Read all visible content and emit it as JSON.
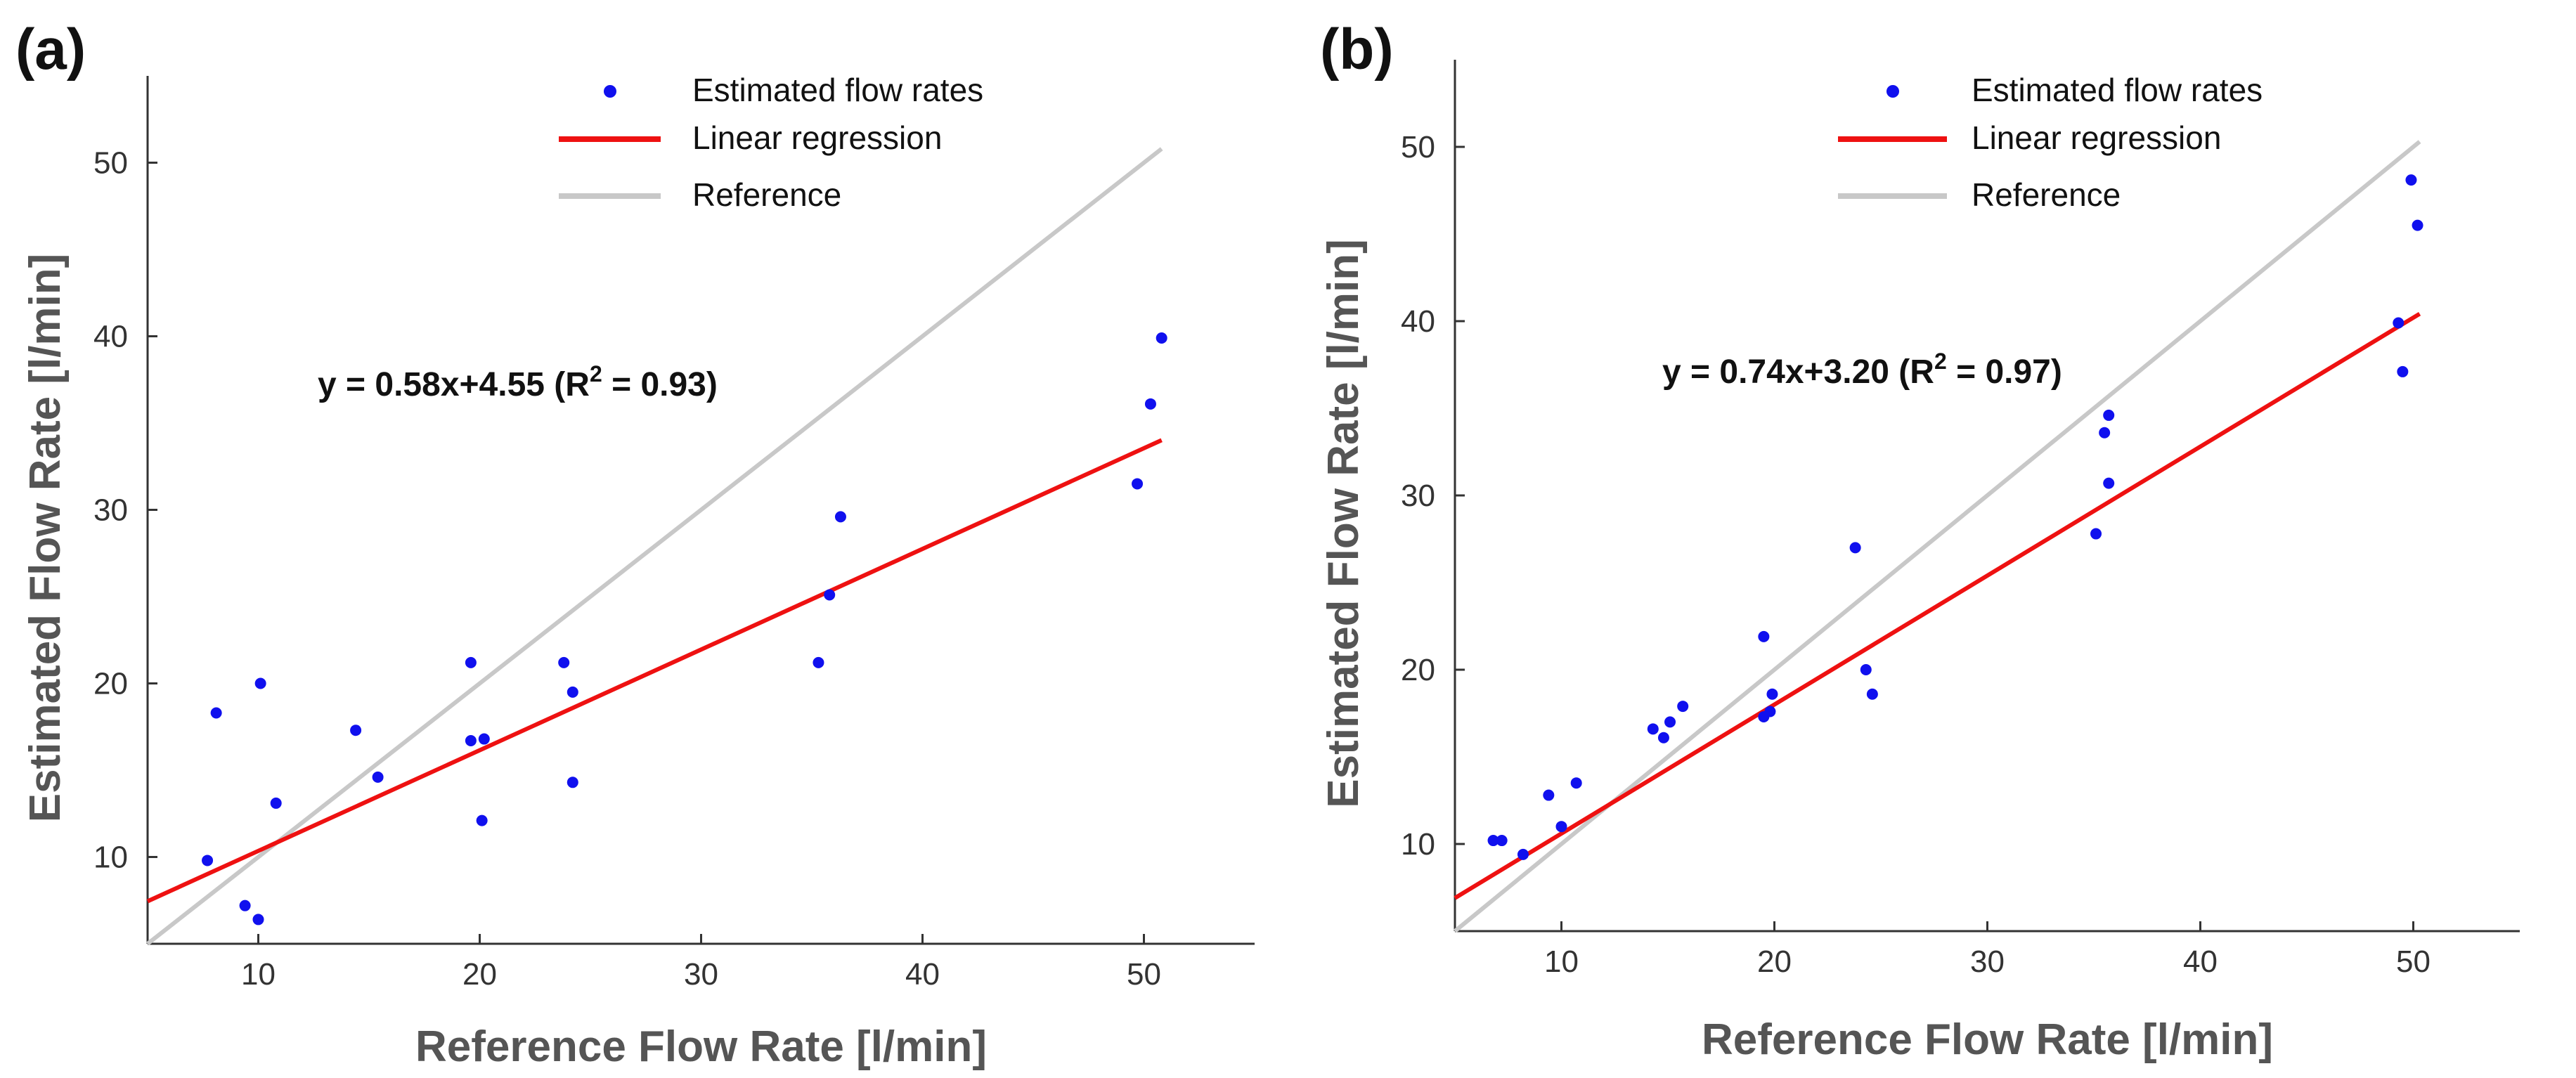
{
  "chart_data": [
    {
      "panel_label": "(a)",
      "type": "scatter",
      "xlabel": "Reference Flow Rate [l/min]",
      "ylabel": "Estimated Flow Rate [l/min]",
      "xlim": [
        5,
        55
      ],
      "ylim": [
        5,
        55
      ],
      "xticks": [
        10,
        20,
        30,
        40,
        50
      ],
      "yticks": [
        10,
        20,
        30,
        40,
        50
      ],
      "equation": {
        "prefix": "y = 0.58x+4.55 (R",
        "sup": "2",
        "suffix": " = 0.93)"
      },
      "legend": {
        "points": "Estimated flow rates",
        "regression": "Linear regression",
        "reference": "Reference"
      },
      "colors": {
        "points": "#1010ee",
        "regression": "#ee1111",
        "reference": "#c8c8c8",
        "axes": "#333333"
      },
      "regression": {
        "slope": 0.58,
        "intercept": 4.55,
        "x_range": [
          5,
          50.8
        ]
      },
      "reference_line": {
        "x_range": [
          5,
          50.8
        ]
      },
      "points": [
        {
          "x": 7.7,
          "y": 9.8
        },
        {
          "x": 8.1,
          "y": 18.3
        },
        {
          "x": 9.4,
          "y": 7.2
        },
        {
          "x": 10.0,
          "y": 6.4
        },
        {
          "x": 10.1,
          "y": 20.0
        },
        {
          "x": 10.8,
          "y": 13.1
        },
        {
          "x": 14.4,
          "y": 17.3
        },
        {
          "x": 15.4,
          "y": 14.6
        },
        {
          "x": 19.6,
          "y": 21.2
        },
        {
          "x": 19.6,
          "y": 16.7
        },
        {
          "x": 20.2,
          "y": 16.8
        },
        {
          "x": 20.1,
          "y": 12.1
        },
        {
          "x": 23.8,
          "y": 21.2
        },
        {
          "x": 24.2,
          "y": 19.5
        },
        {
          "x": 24.2,
          "y": 14.3
        },
        {
          "x": 35.3,
          "y": 21.2
        },
        {
          "x": 35.8,
          "y": 25.1
        },
        {
          "x": 36.3,
          "y": 29.6
        },
        {
          "x": 49.7,
          "y": 31.5
        },
        {
          "x": 50.3,
          "y": 36.1
        },
        {
          "x": 50.8,
          "y": 39.9
        }
      ]
    },
    {
      "panel_label": "(b)",
      "type": "scatter",
      "xlabel": "Reference Flow Rate [l/min]",
      "ylabel": "Estimated Flow Rate [l/min]",
      "xlim": [
        5,
        55
      ],
      "ylim": [
        5,
        55
      ],
      "xticks": [
        10,
        20,
        30,
        40,
        50
      ],
      "yticks": [
        10,
        20,
        30,
        40,
        50
      ],
      "equation": {
        "prefix": "y = 0.74x+3.20 (R",
        "sup": "2",
        "suffix": " = 0.97)"
      },
      "legend": {
        "points": "Estimated flow rates",
        "regression": "Linear regression",
        "reference": "Reference"
      },
      "colors": {
        "points": "#1010ee",
        "regression": "#ee1111",
        "reference": "#c8c8c8",
        "axes": "#333333"
      },
      "regression": {
        "slope": 0.74,
        "intercept": 3.2,
        "x_range": [
          5,
          50.3
        ]
      },
      "reference_line": {
        "x_range": [
          5,
          50.3
        ]
      },
      "points": [
        {
          "x": 6.8,
          "y": 10.2
        },
        {
          "x": 7.2,
          "y": 10.2
        },
        {
          "x": 8.2,
          "y": 9.4
        },
        {
          "x": 9.4,
          "y": 12.8
        },
        {
          "x": 10.0,
          "y": 11.0
        },
        {
          "x": 10.7,
          "y": 13.5
        },
        {
          "x": 14.3,
          "y": 16.6
        },
        {
          "x": 14.8,
          "y": 16.1
        },
        {
          "x": 15.1,
          "y": 17.0
        },
        {
          "x": 15.7,
          "y": 17.9
        },
        {
          "x": 19.5,
          "y": 21.9
        },
        {
          "x": 19.5,
          "y": 17.3
        },
        {
          "x": 19.8,
          "y": 17.6
        },
        {
          "x": 19.9,
          "y": 18.6
        },
        {
          "x": 23.8,
          "y": 27.0
        },
        {
          "x": 24.3,
          "y": 20.0
        },
        {
          "x": 24.6,
          "y": 18.6
        },
        {
          "x": 35.1,
          "y": 27.8
        },
        {
          "x": 35.5,
          "y": 33.6
        },
        {
          "x": 35.7,
          "y": 34.6
        },
        {
          "x": 35.7,
          "y": 30.7
        },
        {
          "x": 49.3,
          "y": 39.9
        },
        {
          "x": 49.5,
          "y": 37.1
        },
        {
          "x": 49.9,
          "y": 48.1
        },
        {
          "x": 50.2,
          "y": 45.5
        }
      ]
    }
  ]
}
